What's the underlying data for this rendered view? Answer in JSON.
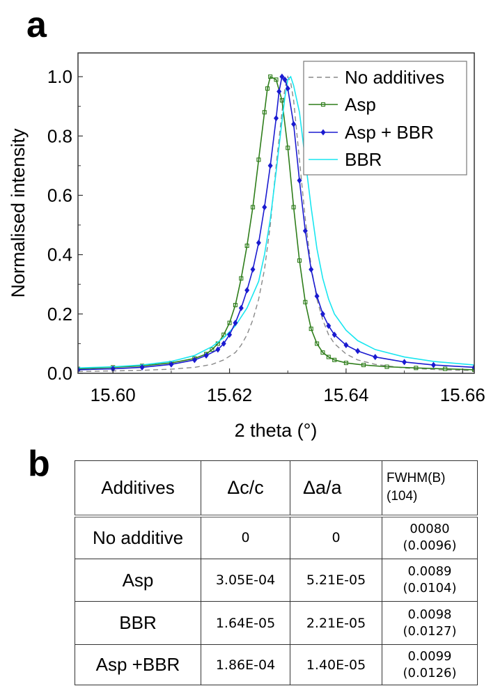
{
  "panels": {
    "a": "a",
    "b": "b"
  },
  "chart_data": {
    "type": "line",
    "xlabel": "2 theta (°)",
    "ylabel": "Normalised intensity",
    "xlim": [
      15.594,
      15.662
    ],
    "ylim": [
      0.0,
      1.08
    ],
    "xticks": [
      "15.60",
      "15.62",
      "15.64",
      "15.66"
    ],
    "xtick_values": [
      15.6,
      15.62,
      15.64,
      15.66
    ],
    "yticks": [
      "0.0",
      "0.2",
      "0.4",
      "0.6",
      "0.8",
      "1.0"
    ],
    "ytick_values": [
      0.0,
      0.2,
      0.4,
      0.6,
      0.8,
      1.0
    ],
    "legend_position": "top-right",
    "series": [
      {
        "name": "No additives",
        "color": "#888888",
        "style": "dashed",
        "marker": "none",
        "points": [
          [
            15.594,
            0.006
          ],
          [
            15.6,
            0.008
          ],
          [
            15.605,
            0.01
          ],
          [
            15.61,
            0.014
          ],
          [
            15.614,
            0.02
          ],
          [
            15.617,
            0.03
          ],
          [
            15.619,
            0.045
          ],
          [
            15.621,
            0.07
          ],
          [
            15.622,
            0.095
          ],
          [
            15.623,
            0.13
          ],
          [
            15.624,
            0.18
          ],
          [
            15.625,
            0.25
          ],
          [
            15.626,
            0.35
          ],
          [
            15.627,
            0.5
          ],
          [
            15.628,
            0.7
          ],
          [
            15.629,
            0.88
          ],
          [
            15.6295,
            0.96
          ],
          [
            15.63,
            1.0
          ],
          [
            15.6305,
            0.98
          ],
          [
            15.631,
            0.92
          ],
          [
            15.632,
            0.72
          ],
          [
            15.633,
            0.52
          ],
          [
            15.634,
            0.36
          ],
          [
            15.635,
            0.25
          ],
          [
            15.636,
            0.18
          ],
          [
            15.637,
            0.13
          ],
          [
            15.638,
            0.1
          ],
          [
            15.64,
            0.065
          ],
          [
            15.642,
            0.045
          ],
          [
            15.645,
            0.03
          ],
          [
            15.65,
            0.018
          ],
          [
            15.656,
            0.012
          ],
          [
            15.662,
            0.009
          ]
        ]
      },
      {
        "name": "Asp",
        "color": "#2e7d1a",
        "style": "solid",
        "marker": "square",
        "points": [
          [
            15.594,
            0.015
          ],
          [
            15.6,
            0.02
          ],
          [
            15.605,
            0.025
          ],
          [
            15.61,
            0.035
          ],
          [
            15.614,
            0.05
          ],
          [
            15.616,
            0.065
          ],
          [
            15.617,
            0.08
          ],
          [
            15.618,
            0.1
          ],
          [
            15.619,
            0.13
          ],
          [
            15.62,
            0.17
          ],
          [
            15.621,
            0.23
          ],
          [
            15.622,
            0.32
          ],
          [
            15.623,
            0.43
          ],
          [
            15.624,
            0.56
          ],
          [
            15.625,
            0.72
          ],
          [
            15.626,
            0.88
          ],
          [
            15.6265,
            0.96
          ],
          [
            15.627,
            1.0
          ],
          [
            15.628,
            0.99
          ],
          [
            15.629,
            0.92
          ],
          [
            15.63,
            0.76
          ],
          [
            15.631,
            0.56
          ],
          [
            15.632,
            0.38
          ],
          [
            15.633,
            0.24
          ],
          [
            15.634,
            0.15
          ],
          [
            15.635,
            0.1
          ],
          [
            15.636,
            0.07
          ],
          [
            15.637,
            0.055
          ],
          [
            15.638,
            0.045
          ],
          [
            15.64,
            0.035
          ],
          [
            15.643,
            0.028
          ],
          [
            15.647,
            0.022
          ],
          [
            15.652,
            0.018
          ],
          [
            15.657,
            0.015
          ],
          [
            15.662,
            0.012
          ]
        ]
      },
      {
        "name": "Asp + BBR",
        "color": "#1a1ad0",
        "style": "solid",
        "marker": "diamond",
        "points": [
          [
            15.594,
            0.012
          ],
          [
            15.6,
            0.015
          ],
          [
            15.605,
            0.02
          ],
          [
            15.61,
            0.03
          ],
          [
            15.614,
            0.045
          ],
          [
            15.616,
            0.06
          ],
          [
            15.618,
            0.08
          ],
          [
            15.619,
            0.1
          ],
          [
            15.62,
            0.13
          ],
          [
            15.621,
            0.17
          ],
          [
            15.622,
            0.22
          ],
          [
            15.623,
            0.28
          ],
          [
            15.624,
            0.35
          ],
          [
            15.625,
            0.44
          ],
          [
            15.626,
            0.56
          ],
          [
            15.627,
            0.7
          ],
          [
            15.628,
            0.86
          ],
          [
            15.6285,
            0.95
          ],
          [
            15.629,
            1.0
          ],
          [
            15.6295,
            0.99
          ],
          [
            15.63,
            0.96
          ],
          [
            15.631,
            0.84
          ],
          [
            15.632,
            0.65
          ],
          [
            15.633,
            0.48
          ],
          [
            15.634,
            0.35
          ],
          [
            15.635,
            0.26
          ],
          [
            15.636,
            0.2
          ],
          [
            15.637,
            0.16
          ],
          [
            15.638,
            0.13
          ],
          [
            15.64,
            0.095
          ],
          [
            15.642,
            0.075
          ],
          [
            15.645,
            0.055
          ],
          [
            15.65,
            0.038
          ],
          [
            15.655,
            0.028
          ],
          [
            15.662,
            0.02
          ]
        ]
      },
      {
        "name": "BBR",
        "color": "#19e6f0",
        "style": "solid",
        "marker": "none",
        "points": [
          [
            15.594,
            0.018
          ],
          [
            15.6,
            0.022
          ],
          [
            15.605,
            0.028
          ],
          [
            15.61,
            0.04
          ],
          [
            15.614,
            0.06
          ],
          [
            15.617,
            0.09
          ],
          [
            15.619,
            0.12
          ],
          [
            15.621,
            0.16
          ],
          [
            15.623,
            0.22
          ],
          [
            15.625,
            0.31
          ],
          [
            15.626,
            0.4
          ],
          [
            15.627,
            0.52
          ],
          [
            15.628,
            0.68
          ],
          [
            15.629,
            0.85
          ],
          [
            15.6295,
            0.93
          ],
          [
            15.63,
            0.99
          ],
          [
            15.6305,
            1.0
          ],
          [
            15.631,
            0.97
          ],
          [
            15.632,
            0.88
          ],
          [
            15.633,
            0.72
          ],
          [
            15.634,
            0.56
          ],
          [
            15.635,
            0.42
          ],
          [
            15.636,
            0.32
          ],
          [
            15.637,
            0.25
          ],
          [
            15.638,
            0.2
          ],
          [
            15.64,
            0.145
          ],
          [
            15.642,
            0.11
          ],
          [
            15.645,
            0.08
          ],
          [
            15.65,
            0.055
          ],
          [
            15.655,
            0.04
          ],
          [
            15.662,
            0.028
          ]
        ]
      }
    ]
  },
  "table": {
    "header": {
      "additives": "Additives",
      "dc": "Δc/c",
      "da": "Δa/a",
      "fwhm_line1": "FWHM(B)",
      "fwhm_line2": "(104)"
    },
    "rows": [
      {
        "name": "No additive",
        "dc": "0",
        "da": "0",
        "fw1": "00080",
        "fw2": "(0.0096)"
      },
      {
        "name": "Asp",
        "dc": "3.05E-04",
        "da": "5.21E-05",
        "fw1": "0.0089",
        "fw2": "(0.0104)"
      },
      {
        "name": "BBR",
        "dc": "1.64E-05",
        "da": "2.21E-05",
        "fw1": "0.0098",
        "fw2": "(0.0127)"
      },
      {
        "name": "Asp +BBR",
        "dc": "1.86E-04",
        "da": "1.40E-05",
        "fw1": "0.0099",
        "fw2": "(0.0126)"
      }
    ]
  }
}
